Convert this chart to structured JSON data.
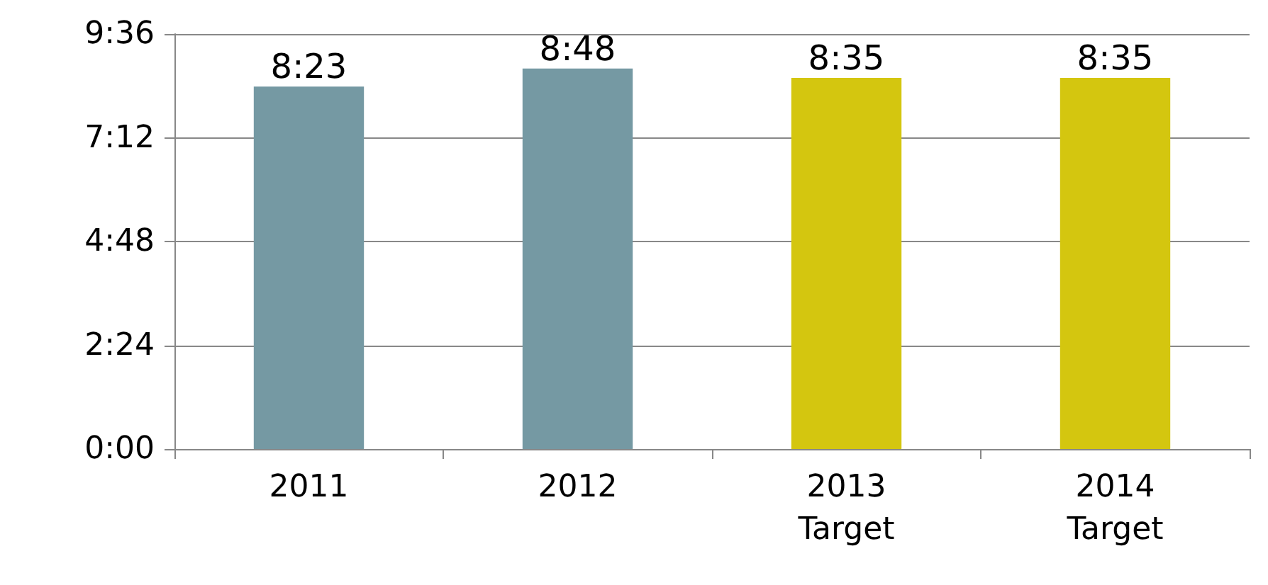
{
  "chart_data": {
    "type": "bar",
    "categories": [
      "2011",
      "2012",
      "2013\nTarget",
      "2014\nTarget"
    ],
    "values": [
      8.3833,
      8.8,
      8.5833,
      8.5833
    ],
    "value_labels": [
      "8:23",
      "8:48",
      "8:35",
      "8:35"
    ],
    "colors": [
      "#7599a3",
      "#7599a3",
      "#d4c60f",
      "#d4c60f"
    ],
    "ylim": [
      0,
      9.6
    ],
    "yticks": [
      {
        "value": 0,
        "label": "0:00"
      },
      {
        "value": 2.4,
        "label": "2:24"
      },
      {
        "value": 4.8,
        "label": "4:48"
      },
      {
        "value": 7.2,
        "label": "7:12"
      },
      {
        "value": 9.6,
        "label": "9:36"
      }
    ],
    "grid": "y"
  }
}
